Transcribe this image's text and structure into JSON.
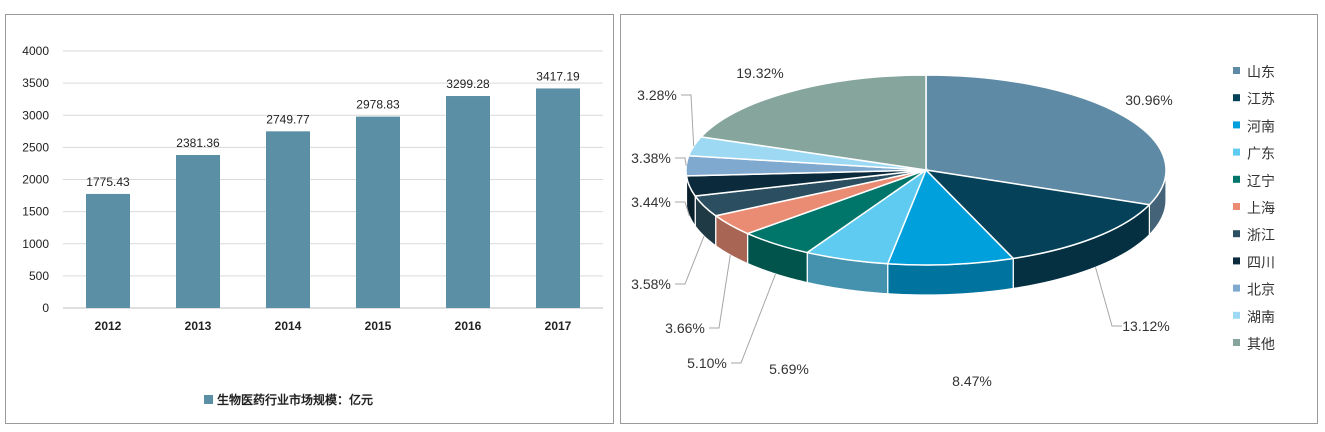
{
  "chart_data": [
    {
      "type": "bar",
      "categories": [
        "2012",
        "2013",
        "2014",
        "2015",
        "2016",
        "2017"
      ],
      "values": [
        1775.43,
        2381.36,
        2749.77,
        2978.83,
        3299.28,
        3417.19
      ],
      "data_labels": [
        "1775.43",
        "2381.36",
        "2749.77",
        "2978.83",
        "3299.28",
        "3417.19"
      ],
      "yticks": [
        0,
        500,
        1000,
        1500,
        2000,
        2500,
        3000,
        3500,
        4000
      ],
      "ylim": [
        0,
        4000
      ],
      "grid": true,
      "legend": {
        "position": "bottom",
        "entries": [
          "生物医药行业市场规模：亿元"
        ]
      },
      "color": "#5b8fa5"
    },
    {
      "type": "pie",
      "style": "3d",
      "labels": [
        "山东",
        "江苏",
        "河南",
        "广东",
        "辽宁",
        "上海",
        "浙江",
        "四川",
        "北京",
        "湖南",
        "其他"
      ],
      "values": [
        30.96,
        13.12,
        8.47,
        5.69,
        5.1,
        3.66,
        3.58,
        3.44,
        3.38,
        3.28,
        19.32
      ],
      "value_labels": [
        "30.96%",
        "13.12%",
        "8.47%",
        "5.69%",
        "5.10%",
        "3.66%",
        "3.58%",
        "3.44%",
        "3.38%",
        "3.28%",
        "19.32%"
      ],
      "colors": [
        "#5e8aa6",
        "#05425a",
        "#00a0dc",
        "#5fcbf1",
        "#00756a",
        "#e98c73",
        "#2b4f60",
        "#0b2b3d",
        "#7fa9cf",
        "#9dd9f3",
        "#85a59d"
      ],
      "legend": {
        "position": "right"
      }
    }
  ]
}
